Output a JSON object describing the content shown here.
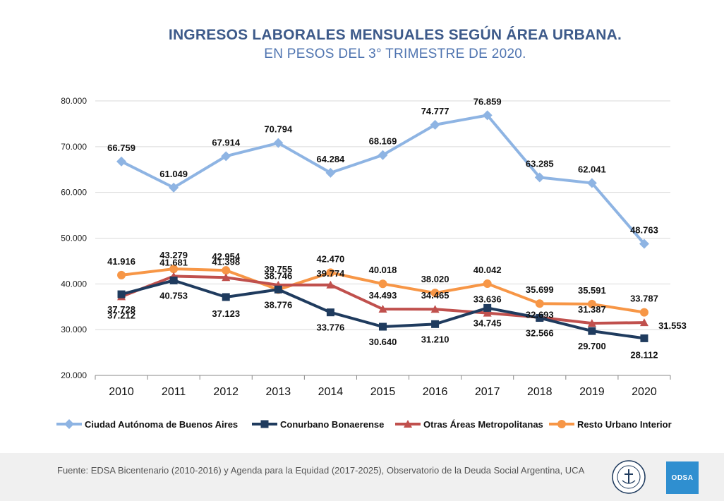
{
  "chart_data": {
    "type": "line",
    "title": "INGRESOS LABORALES MENSUALES SEGÚN ÁREA URBANA.",
    "subtitle": "EN PESOS DEL 3° TRIMESTRE DE 2020.",
    "xlabel": "",
    "ylabel": "",
    "x": [
      "2010",
      "2011",
      "2012",
      "2013",
      "2014",
      "2015",
      "2016",
      "2017",
      "2018",
      "2019",
      "2020"
    ],
    "ylim": [
      20000,
      80000
    ],
    "yticks": [
      20000,
      30000,
      40000,
      50000,
      60000,
      70000,
      80000
    ],
    "ytick_labels": [
      "20.000",
      "30.000",
      "40.000",
      "50.000",
      "60.000",
      "70.000",
      "80.000"
    ],
    "grid": "horizontal",
    "legend_position": "bottom",
    "series": [
      {
        "name": "Ciudad Autónoma de Buenos Aires",
        "color": "#8eb4e3",
        "marker": "diamond",
        "values": [
          66759,
          61049,
          67914,
          70794,
          64284,
          68169,
          74777,
          76859,
          63285,
          62041,
          48763
        ],
        "labels": [
          "66.759",
          "61.049",
          "67.914",
          "70.794",
          "64.284",
          "68.169",
          "74.777",
          "76.859",
          "63.285",
          "62.041",
          "48.763"
        ]
      },
      {
        "name": "Conurbano Bonaerense",
        "color": "#1f3b5e",
        "marker": "square",
        "values": [
          37728,
          40753,
          37123,
          38776,
          33776,
          30640,
          31210,
          34745,
          32566,
          29700,
          28112
        ],
        "labels": [
          "37.728",
          "40.753",
          "37.123",
          "38.776",
          "33.776",
          "30.640",
          "31.210",
          "34.745",
          "32.566",
          "29.700",
          "28.112"
        ]
      },
      {
        "name": "Otras Áreas Metropolitanas",
        "color": "#c0504d",
        "marker": "triangle",
        "values": [
          37212,
          41681,
          41398,
          39755,
          39774,
          34493,
          34465,
          33636,
          32693,
          31387,
          31553
        ],
        "labels": [
          "37.212",
          "41.681",
          "41.398",
          "39.755",
          "39.774",
          "34.493",
          "34.465",
          "33.636",
          "32.693",
          "31.387",
          "31.553"
        ]
      },
      {
        "name": "Resto Urbano Interior",
        "color": "#f79646",
        "marker": "circle",
        "values": [
          41916,
          43279,
          42954,
          38746,
          42470,
          40018,
          38020,
          40042,
          35699,
          35591,
          33787
        ],
        "labels": [
          "41.916",
          "43.279",
          "42.954",
          "38.746",
          "42.470",
          "40.018",
          "38.020",
          "40.042",
          "35.699",
          "35.591",
          "33.787"
        ]
      }
    ]
  },
  "footer": {
    "source": "Fuente: EDSA Bicentenario (2010-2016) y Agenda para la Equidad (2017-2025), Observatorio de la Deuda Social Argentina, UCA",
    "odsa_logo_text": "ODSA",
    "seal_icon": "uca-seal-icon"
  }
}
